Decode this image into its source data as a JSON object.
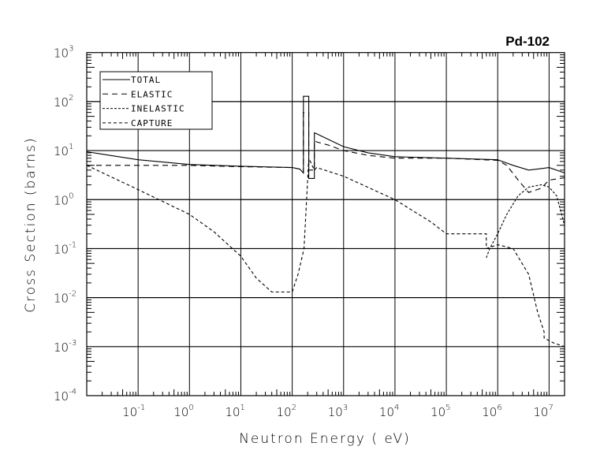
{
  "chart_data": {
    "type": "line",
    "title": "Pd-102",
    "xlabel": "Neutron Energy ( eV)",
    "ylabel": "Cross Section (barns)",
    "xscale": "log",
    "yscale": "log",
    "xlim": [
      0.01,
      20000000
    ],
    "ylim": [
      0.0001,
      1000
    ],
    "grid": true,
    "legend_position": "top-left",
    "x_ticks": [
      {
        "base": "10",
        "exp": "-1",
        "value": 0.1
      },
      {
        "base": "10",
        "exp": "0",
        "value": 1
      },
      {
        "base": "10",
        "exp": "1",
        "value": 10
      },
      {
        "base": "10",
        "exp": "2",
        "value": 100
      },
      {
        "base": "10",
        "exp": "3",
        "value": 1000
      },
      {
        "base": "10",
        "exp": "4",
        "value": 10000
      },
      {
        "base": "10",
        "exp": "5",
        "value": 100000
      },
      {
        "base": "10",
        "exp": "6",
        "value": 1000000
      },
      {
        "base": "10",
        "exp": "7",
        "value": 10000000
      }
    ],
    "y_ticks": [
      {
        "base": "10",
        "exp": "3",
        "value": 1000
      },
      {
        "base": "10",
        "exp": "2",
        "value": 100
      },
      {
        "base": "10",
        "exp": "1",
        "value": 10
      },
      {
        "base": "10",
        "exp": "0",
        "value": 1
      },
      {
        "base": "10",
        "exp": "-1",
        "value": 0.1
      },
      {
        "base": "10",
        "exp": "-2",
        "value": 0.01
      },
      {
        "base": "10",
        "exp": "-3",
        "value": 0.001
      },
      {
        "base": "10",
        "exp": "-4",
        "value": 0.0001
      }
    ],
    "series": [
      {
        "name": "TOTAL",
        "dash": "none",
        "x": [
          0.01,
          0.1,
          1,
          10,
          100,
          140,
          165,
          165,
          210,
          210,
          270,
          270,
          300,
          500,
          1000,
          3000,
          10000,
          100000,
          1000000,
          2000000,
          4000000,
          7000000,
          10000000,
          20000000
        ],
        "y": [
          9.5,
          6.5,
          5.2,
          4.8,
          4.5,
          4.2,
          3.5,
          128,
          128,
          2.7,
          2.7,
          23,
          22,
          17,
          12,
          9,
          7.5,
          7,
          6.5,
          5,
          4,
          4.3,
          4.5,
          3.5
        ]
      },
      {
        "name": "ELASTIC",
        "dash": "7,5",
        "x": [
          0.01,
          0.1,
          1,
          10,
          100,
          140,
          165,
          165,
          210,
          210,
          270,
          270,
          300,
          500,
          1000,
          3000,
          10000,
          100000,
          1000000,
          1500000,
          2500000,
          4000000,
          7000000,
          10000000,
          20000000
        ],
        "y": [
          5,
          5,
          5,
          4.7,
          4.5,
          4.2,
          3.5,
          60,
          60,
          4,
          4,
          16,
          15,
          13,
          10,
          8,
          7,
          7,
          6.3,
          5,
          2.5,
          1.4,
          1.7,
          2.5,
          2.8
        ]
      },
      {
        "name": "INELASTIC",
        "dash": "3,2",
        "x": [
          600000,
          600000,
          700000,
          1000000,
          1500000,
          2500000,
          4000000,
          7000000,
          10000000,
          14000000,
          20000000
        ],
        "y": [
          0.065,
          0.065,
          0.1,
          0.2,
          0.5,
          1.2,
          1.8,
          2,
          1.8,
          1.2,
          0.3
        ]
      },
      {
        "name": "CAPTURE",
        "dash": "4,3",
        "x": [
          0.01,
          0.1,
          1,
          3,
          10,
          20,
          40,
          100,
          130,
          170,
          170,
          210,
          210,
          270,
          300,
          1000,
          10000,
          50000,
          100000,
          600000,
          600000,
          1000000,
          2000000,
          4000000,
          6000000,
          8000000,
          8000000,
          12000000,
          20000000
        ],
        "y": [
          5,
          1.6,
          0.5,
          0.22,
          0.07,
          0.025,
          0.013,
          0.013,
          0.03,
          0.1,
          0.1,
          7,
          7,
          4,
          4.5,
          3,
          1,
          0.35,
          0.2,
          0.2,
          0.1,
          0.12,
          0.1,
          0.03,
          0.005,
          0.002,
          0.0015,
          0.0012,
          0.001
        ]
      }
    ]
  }
}
